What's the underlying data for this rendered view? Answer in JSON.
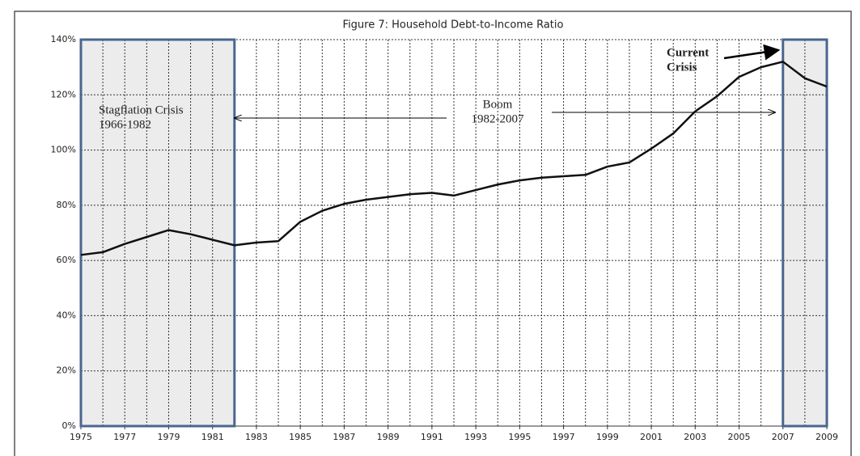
{
  "chart_data": {
    "type": "line",
    "title": "Figure 7: Household Debt-to-Income Ratio",
    "x": [
      1975,
      1976,
      1977,
      1978,
      1979,
      1980,
      1981,
      1982,
      1983,
      1984,
      1985,
      1986,
      1987,
      1988,
      1989,
      1990,
      1991,
      1992,
      1993,
      1994,
      1995,
      1996,
      1997,
      1998,
      1999,
      2000,
      2001,
      2002,
      2003,
      2004,
      2005,
      2006,
      2007,
      2008,
      2009
    ],
    "series": [
      {
        "name": "Household Debt-to-Income Ratio",
        "color": "#111111",
        "values": [
          62,
          63,
          66,
          68.5,
          71,
          69.5,
          67.5,
          65.5,
          66.5,
          67,
          74,
          78,
          80.5,
          82,
          83,
          84,
          84.5,
          83.5,
          85.5,
          87.5,
          89,
          90,
          90.5,
          91,
          94,
          95.5,
          100.5,
          106,
          114,
          119.5,
          126.5,
          130,
          132,
          126,
          123
        ]
      }
    ],
    "xlim": [
      1975,
      2009
    ],
    "xticks": [
      1975,
      1977,
      1979,
      1981,
      1983,
      1985,
      1987,
      1989,
      1991,
      1993,
      1995,
      1997,
      1999,
      2001,
      2003,
      2005,
      2007,
      2009
    ],
    "ylim": [
      0,
      140
    ],
    "yticks": [
      {
        "value": 0,
        "label": "0%"
      },
      {
        "value": 20,
        "label": "20%"
      },
      {
        "value": 40,
        "label": "40%"
      },
      {
        "value": 60,
        "label": "60%"
      },
      {
        "value": 80,
        "label": "80%"
      },
      {
        "value": 100,
        "label": "100%"
      },
      {
        "value": 120,
        "label": "120%"
      },
      {
        "value": 140,
        "label": "140%"
      }
    ],
    "grid": true,
    "highlight_ranges": [
      [
        1975,
        1982
      ],
      [
        2007,
        2009
      ]
    ],
    "annotations": [
      {
        "lines": [
          "Stagflation Crisis",
          "1966-1982"
        ]
      },
      {
        "lines": [
          "Boom",
          "1982-2007"
        ]
      },
      {
        "lines": [
          "Current",
          "Crisis"
        ]
      }
    ]
  }
}
